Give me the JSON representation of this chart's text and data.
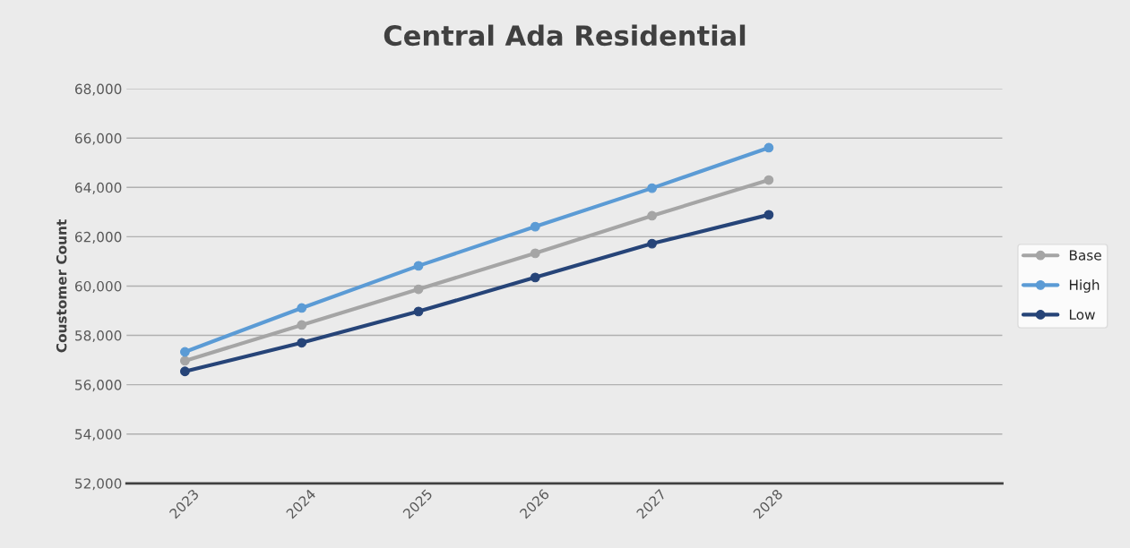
{
  "chart_data": {
    "type": "line",
    "title": "Central Ada Residential",
    "ylabel": "Coustomer Count",
    "categories": [
      "2023",
      "2024",
      "2025",
      "2026",
      "2027",
      "2028"
    ],
    "series": [
      {
        "name": "Base",
        "color": "#a5a5a5",
        "values": [
          56970,
          58420,
          59870,
          61330,
          62850,
          64300
        ]
      },
      {
        "name": "High",
        "color": "#5b9bd5",
        "values": [
          57330,
          59110,
          60820,
          62410,
          63970,
          65610
        ]
      },
      {
        "name": "Low",
        "color": "#264478",
        "values": [
          56540,
          57700,
          58970,
          60350,
          61720,
          62890
        ]
      }
    ],
    "ylim": [
      52000,
      68000
    ],
    "yticks": [
      {
        "value": 52000,
        "label": "52,000"
      },
      {
        "value": 54000,
        "label": "54,000"
      },
      {
        "value": 56000,
        "label": "56,000"
      },
      {
        "value": 58000,
        "label": "58,000"
      },
      {
        "value": 60000,
        "label": "60,000"
      },
      {
        "value": 62000,
        "label": "62,000"
      },
      {
        "value": 64000,
        "label": "64,000"
      },
      {
        "value": 66000,
        "label": "66,000"
      },
      {
        "value": 68000,
        "label": "68,000"
      }
    ],
    "grid": "y",
    "legend": "right",
    "marker": "circle",
    "line_style": "solid"
  }
}
